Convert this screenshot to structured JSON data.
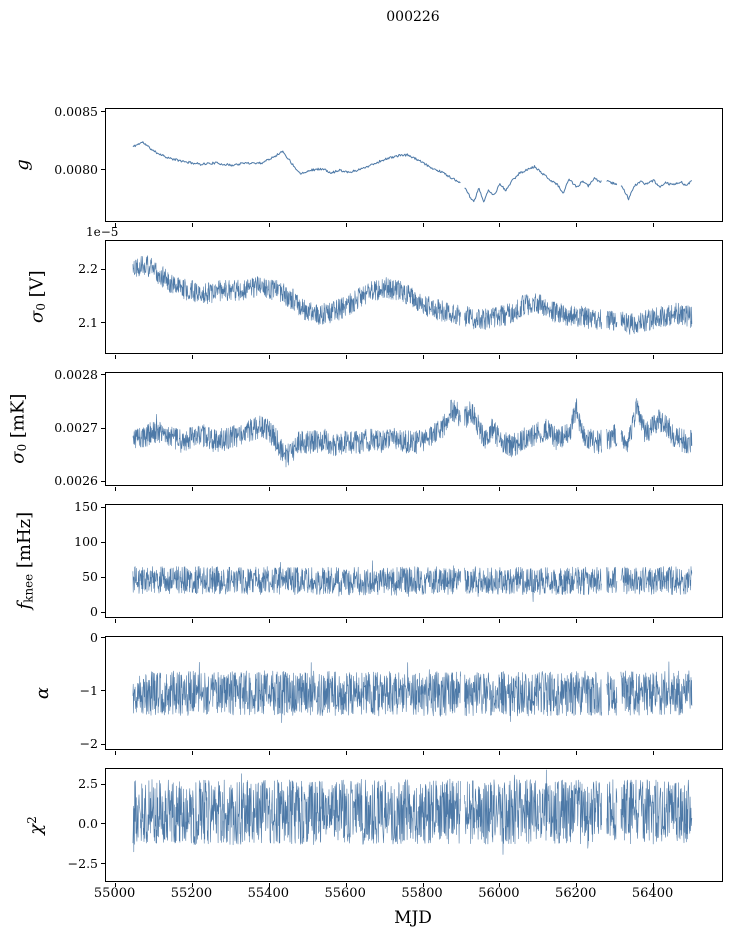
{
  "title": "000226",
  "chart_data": {
    "type": "line",
    "line_color": "#4d79a7",
    "grid": false,
    "legend": null,
    "x_axis": {
      "label": "MJD",
      "lim": [
        54975,
        56578
      ],
      "ticks": [
        55000,
        55200,
        55400,
        55600,
        55800,
        56000,
        56200,
        56400
      ],
      "tick_labels": [
        "55000",
        "55200",
        "55400",
        "55600",
        "55800",
        "56000",
        "56200",
        "56400"
      ]
    },
    "segments": [
      [
        55045,
        55898
      ],
      [
        55908,
        56265
      ],
      [
        56278,
        56305
      ],
      [
        56315,
        56500
      ]
    ],
    "panels": [
      {
        "name": "gain",
        "ylabel": "g",
        "ylabel_tokens": [
          {
            "v": "g",
            "style": "italic"
          }
        ],
        "offset_label": null,
        "ylim": [
          0.00756,
          0.008525
        ],
        "yticks": [
          0.008,
          0.0085
        ],
        "ytick_labels": [
          "0.0080",
          "0.0085"
        ],
        "noise_amp": 1e-05,
        "spike_prob": 0.0,
        "spike_factor": 1.0,
        "step": 2.0,
        "line_width": 1.0,
        "seed": 11,
        "trend": {
          "x": [
            55045,
            55070,
            55100,
            55140,
            55180,
            55220,
            55260,
            55300,
            55340,
            55380,
            55420,
            55435,
            55460,
            55480,
            55510,
            55540,
            55560,
            55580,
            55610,
            55640,
            55670,
            55700,
            55730,
            55760,
            55790,
            55820,
            55850,
            55880,
            55898,
            55908,
            55920,
            55932,
            55945,
            55958,
            55970,
            55985,
            56000,
            56015,
            56030,
            56050,
            56070,
            56090,
            56110,
            56130,
            56150,
            56165,
            56180,
            56200,
            56215,
            56230,
            56245,
            56260,
            56280,
            56300,
            56320,
            56335,
            56350,
            56365,
            56380,
            56400,
            56415,
            56430,
            56450,
            56470,
            56485,
            56500
          ],
          "y": [
            0.0082,
            0.00824,
            0.00816,
            0.0081,
            0.00807,
            0.00805,
            0.00806,
            0.00804,
            0.00806,
            0.00806,
            0.00813,
            0.00816,
            0.00805,
            0.00797,
            0.008,
            0.00801,
            0.00797,
            0.008,
            0.00798,
            0.00801,
            0.00805,
            0.00809,
            0.00812,
            0.00813,
            0.00808,
            0.00802,
            0.00798,
            0.00792,
            0.00788,
            0.00785,
            0.00778,
            0.00772,
            0.00784,
            0.00773,
            0.00782,
            0.00778,
            0.00788,
            0.00782,
            0.0079,
            0.00797,
            0.008,
            0.00803,
            0.00797,
            0.00792,
            0.00787,
            0.0078,
            0.00792,
            0.00785,
            0.0079,
            0.00786,
            0.00793,
            0.0079,
            0.0079,
            0.00788,
            0.00785,
            0.00775,
            0.00786,
            0.0079,
            0.00788,
            0.00791,
            0.00785,
            0.00789,
            0.00787,
            0.0079,
            0.00786,
            0.00791
          ]
        }
      },
      {
        "name": "sigma0_volts",
        "ylabel": "σ0 [V]",
        "ylabel_tokens": [
          {
            "v": "σ",
            "style": "italic"
          },
          {
            "v": "0",
            "style": "sub"
          },
          {
            "v": " [V]",
            "style": "normal"
          }
        ],
        "offset_label": "1e−5",
        "ylim": [
          2.044,
          2.253
        ],
        "yticks": [
          2.1,
          2.2
        ],
        "ytick_labels": [
          "2.1",
          "2.2"
        ],
        "noise_amp": 0.02,
        "spike_prob": 0.006,
        "spike_factor": 1.6,
        "step": 0.8,
        "line_width": 0.6,
        "seed": 22,
        "trend": {
          "x": [
            55045,
            55075,
            55105,
            55135,
            55165,
            55200,
            55240,
            55270,
            55300,
            55340,
            55370,
            55400,
            55430,
            55460,
            55490,
            55520,
            55550,
            55580,
            55610,
            55640,
            55670,
            55700,
            55730,
            55760,
            55790,
            55820,
            55850,
            55880,
            55898,
            55908,
            55940,
            55970,
            56000,
            56030,
            56060,
            56090,
            56120,
            56150,
            56180,
            56210,
            56240,
            56265,
            56278,
            56305,
            56315,
            56340,
            56370,
            56400,
            56430,
            56460,
            56480,
            56500
          ],
          "y": [
            2.205,
            2.21,
            2.195,
            2.18,
            2.165,
            2.16,
            2.155,
            2.16,
            2.16,
            2.163,
            2.168,
            2.165,
            2.158,
            2.145,
            2.125,
            2.115,
            2.118,
            2.125,
            2.135,
            2.15,
            2.16,
            2.166,
            2.162,
            2.152,
            2.138,
            2.128,
            2.122,
            2.117,
            2.112,
            2.112,
            2.11,
            2.107,
            2.112,
            2.118,
            2.132,
            2.138,
            2.128,
            2.118,
            2.113,
            2.112,
            2.108,
            2.105,
            2.103,
            2.104,
            2.103,
            2.098,
            2.102,
            2.108,
            2.113,
            2.118,
            2.115,
            2.11
          ]
        }
      },
      {
        "name": "sigma0_mk",
        "ylabel": "σ0 [mK]",
        "ylabel_tokens": [
          {
            "v": "σ",
            "style": "italic"
          },
          {
            "v": "0",
            "style": "sub"
          },
          {
            "v": " [mK]",
            "style": "normal"
          }
        ],
        "offset_label": null,
        "ylim": [
          0.0025926,
          0.0028037
        ],
        "yticks": [
          0.0026,
          0.0027,
          0.0028
        ],
        "ytick_labels": [
          "0.0026",
          "0.0027",
          "0.0028"
        ],
        "noise_amp": 2.2e-05,
        "spike_prob": 0.006,
        "spike_factor": 1.5,
        "step": 0.8,
        "line_width": 0.6,
        "seed": 33,
        "trend": {
          "x": [
            55045,
            55080,
            55110,
            55140,
            55170,
            55200,
            55230,
            55260,
            55290,
            55320,
            55350,
            55380,
            55400,
            55420,
            55440,
            55460,
            55480,
            55510,
            55540,
            55570,
            55600,
            55630,
            55660,
            55690,
            55720,
            55750,
            55780,
            55810,
            55840,
            55860,
            55875,
            55890,
            55898,
            55908,
            55925,
            55940,
            55960,
            55980,
            56000,
            56030,
            56060,
            56090,
            56120,
            56150,
            56180,
            56200,
            56212,
            56230,
            56250,
            56278,
            56300,
            56315,
            56335,
            56358,
            56372,
            56390,
            56410,
            56430,
            56450,
            56470,
            56490,
            56500
          ],
          "y": [
            0.00268,
            0.002685,
            0.002695,
            0.002685,
            0.002675,
            0.00268,
            0.002685,
            0.002675,
            0.00268,
            0.002685,
            0.002695,
            0.002705,
            0.002695,
            0.002675,
            0.002645,
            0.002655,
            0.002675,
            0.002672,
            0.002678,
            0.002668,
            0.002675,
            0.002672,
            0.002678,
            0.002672,
            0.002682,
            0.002675,
            0.002672,
            0.002678,
            0.002692,
            0.002712,
            0.002735,
            0.002728,
            0.002708,
            0.002718,
            0.002732,
            0.002708,
            0.002682,
            0.002698,
            0.002678,
            0.002665,
            0.002678,
            0.002688,
            0.002698,
            0.002678,
            0.002688,
            0.002738,
            0.002692,
            0.002678,
            0.002672,
            0.002678,
            0.002688,
            0.002682,
            0.002675,
            0.002748,
            0.002695,
            0.002695,
            0.002715,
            0.002708,
            0.002688,
            0.002678,
            0.002672,
            0.002675
          ]
        }
      },
      {
        "name": "f_knee",
        "ylabel": "f_knee [mHz]",
        "ylabel_tokens": [
          {
            "v": "f",
            "style": "italic"
          },
          {
            "v": "knee",
            "style": "sub"
          },
          {
            "v": " [mHz]",
            "style": "normal"
          }
        ],
        "offset_label": null,
        "ylim": [
          -7,
          153
        ],
        "yticks": [
          0,
          50,
          100,
          150
        ],
        "ytick_labels": [
          "0",
          "50",
          "100",
          "150"
        ],
        "noise_amp": 20,
        "spike_prob": 0.02,
        "spike_factor": 1.5,
        "step": 0.8,
        "line_width": 0.6,
        "seed": 44,
        "trend": {
          "x": [
            55045,
            55200,
            55400,
            55600,
            55800,
            55908,
            56100,
            56265,
            56305,
            56500
          ],
          "y": [
            45,
            46,
            45,
            44,
            45,
            45,
            44,
            45,
            45,
            45
          ]
        }
      },
      {
        "name": "alpha",
        "ylabel": "α",
        "ylabel_tokens": [
          {
            "v": "α",
            "style": "italic"
          }
        ],
        "offset_label": null,
        "ylim": [
          -2.09,
          0.01
        ],
        "yticks": [
          0,
          -1,
          -2
        ],
        "ytick_labels": [
          "0",
          "−1",
          "−2"
        ],
        "noise_amp": 0.42,
        "spike_prob": 0.012,
        "spike_factor": 1.45,
        "step": 0.8,
        "line_width": 0.6,
        "seed": 55,
        "trend": {
          "x": [
            55045,
            55400,
            55800,
            56100,
            56500
          ],
          "y": [
            -1.05,
            -1.04,
            -1.06,
            -1.05,
            -1.04
          ]
        }
      },
      {
        "name": "chi_squared",
        "ylabel": "χ2",
        "ylabel_tokens": [
          {
            "v": "χ",
            "style": "italic"
          },
          {
            "v": "2",
            "style": "sup"
          }
        ],
        "offset_label": null,
        "ylim": [
          -3.6,
          3.45
        ],
        "yticks": [
          2.5,
          0.0,
          -2.5
        ],
        "ytick_labels": [
          "2.5",
          "0.0",
          "−2.5"
        ],
        "noise_amp": 2.05,
        "spike_prob": 0.012,
        "spike_factor": 1.35,
        "step": 0.8,
        "line_width": 0.6,
        "seed": 66,
        "trend": {
          "x": [
            55045,
            55400,
            55800,
            56100,
            56500
          ],
          "y": [
            0.75,
            0.72,
            0.78,
            0.75,
            0.74
          ]
        }
      }
    ]
  }
}
